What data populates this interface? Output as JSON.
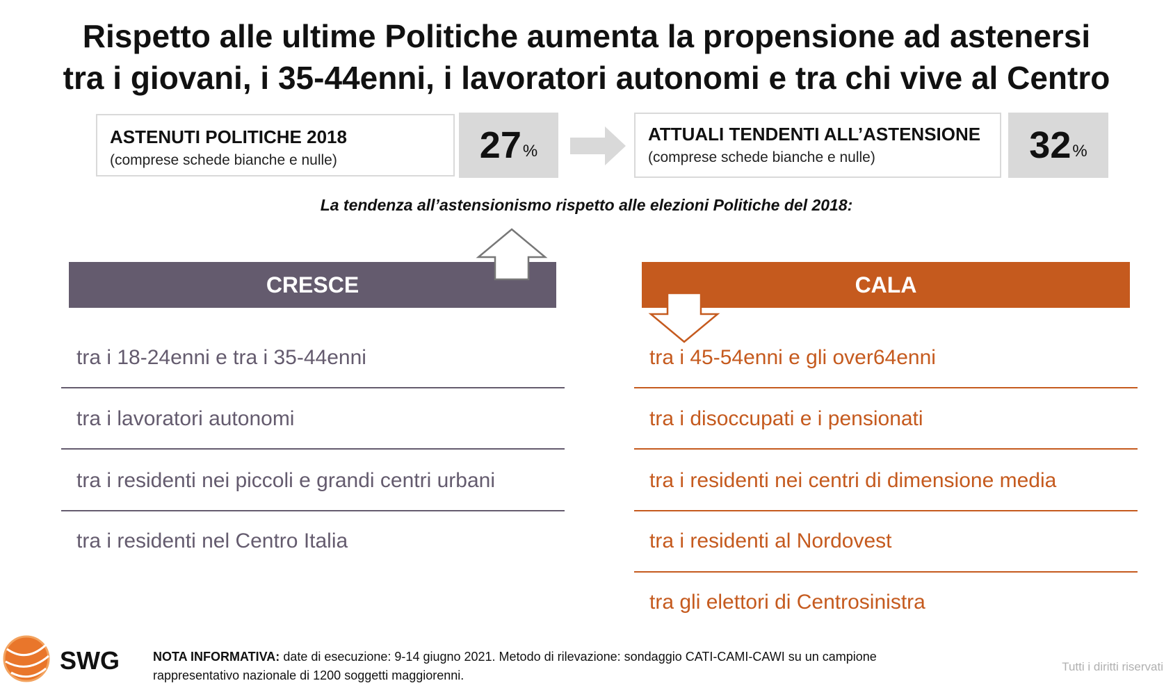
{
  "title": {
    "line1": "Rispetto alle ultime Politiche aumenta la propensione ad astenersi",
    "line2": "tra i giovani, i 35-44enni, i lavoratori autonomi e tra chi vive al Centro"
  },
  "stats": {
    "left": {
      "label": "ASTENUTI POLITICHE 2018",
      "sub": "(comprese schede bianche e nulle)",
      "value": "27",
      "unit": "%"
    },
    "right": {
      "label": "ATTUALI TENDENTI ALL’ASTENSIONE",
      "sub": "(comprese schede bianche e nulle)",
      "value": "32",
      "unit": "%"
    }
  },
  "subtitle": "La tendenza all’astensionismo rispetto alle elezioni Politiche del 2018:",
  "cresce": {
    "header": "CRESCE",
    "items": [
      "tra i 18-24enni e tra i 35-44enni",
      "tra i lavoratori autonomi",
      "tra i residenti nei piccoli e grandi centri urbani",
      "tra i residenti nel Centro Italia"
    ]
  },
  "cala": {
    "header": "CALA",
    "items": [
      "tra i 45-54enni e gli over64enni",
      "tra i disoccupati e i pensionati",
      "tra i residenti nei centri di dimensione media",
      "tra i residenti al Nordovest",
      "tra gli elettori di Centrosinistra"
    ]
  },
  "colors": {
    "cresce": "#645b6e",
    "cala": "#c55a1e",
    "stat_bg": "#d9d9d9"
  },
  "footer": {
    "logo_text": "SWG",
    "note_label": "NOTA INFORMATIVA:",
    "note_text": " date di esecuzione: 9-14 giugno 2021. Metodo di rilevazione: sondaggio CATI-CAMI-CAWI su un campione",
    "note_text2": "rappresentativo nazionale di 1200 soggetti maggiorenni.",
    "rights": "Tutti i diritti riservati"
  }
}
